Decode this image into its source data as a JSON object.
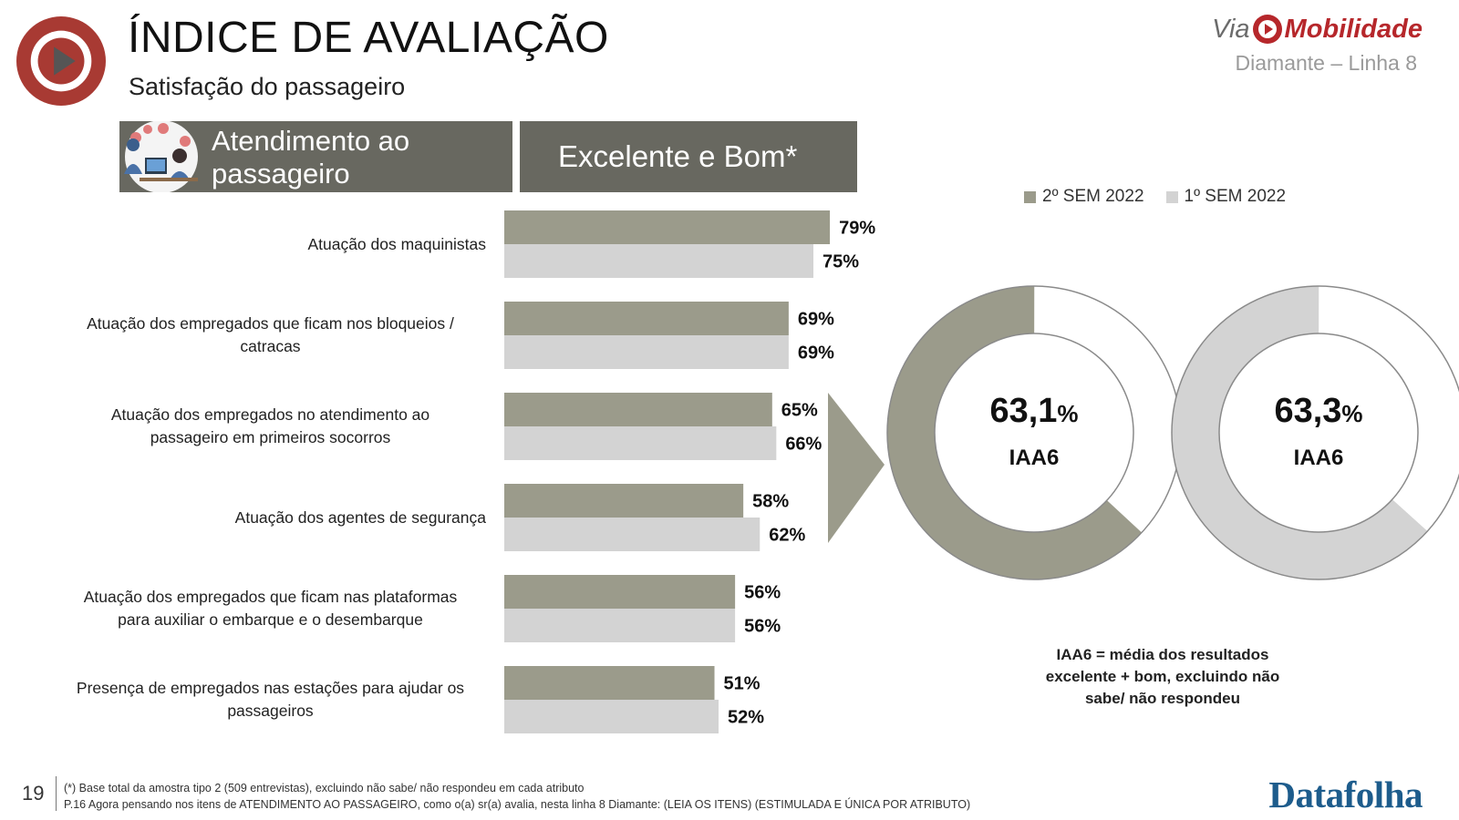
{
  "header": {
    "title": "ÍNDICE DE AVALIAÇÃO",
    "subtitle": "Satisfação do passageiro",
    "brand_prefix": "Via",
    "brand_name": "Mobilidade",
    "line_name": "Diamante – Linha 8"
  },
  "section": {
    "label": "Atendimento ao passageiro",
    "metric": "Excelente e Bom*"
  },
  "colors": {
    "series_current": "#9b9b8b",
    "series_previous": "#d3d3d3",
    "banner": "#686860",
    "brand_red": "#b6272b",
    "datafolha_blue": "#1d5c8c"
  },
  "chart_data": [
    {
      "type": "bar",
      "orientation": "horizontal",
      "categories": [
        "Atuação dos maquinistas",
        "Atuação dos empregados que ficam nos bloqueios / catracas",
        "Atuação dos  empregados no atendimento ao passageiro em primeiros socorros",
        "Atuação dos agentes de segurança",
        "Atuação dos empregados que ficam nas plataformas para auxiliar o embarque e o desembarque",
        "Presença de empregados nas estações para ajudar os passageiros"
      ],
      "category_lines": [
        [
          "Atuação dos maquinistas"
        ],
        [
          "Atuação dos empregados que ficam nos bloqueios /",
          "catracas"
        ],
        [
          "Atuação dos  empregados no atendimento ao",
          "passageiro em primeiros socorros"
        ],
        [
          "Atuação dos agentes de segurança"
        ],
        [
          "Atuação dos empregados que ficam nas plataformas",
          "para auxiliar o embarque e o desembarque"
        ],
        [
          "Presença de empregados nas estações para ajudar os",
          "passageiros"
        ]
      ],
      "series": [
        {
          "name": "2º SEM 2022",
          "values": [
            79,
            69,
            65,
            58,
            56,
            51
          ],
          "labels": [
            "79%",
            "69%",
            "65%",
            "58%",
            "56%",
            "51%"
          ]
        },
        {
          "name": "1º SEM 2022",
          "values": [
            75,
            69,
            66,
            62,
            56,
            52
          ],
          "labels": [
            "75%",
            "69%",
            "66%",
            "62%",
            "56%",
            "52%"
          ]
        }
      ],
      "unit": "%",
      "xlim": [
        0,
        100
      ],
      "grid": false,
      "legend": "top-right"
    },
    {
      "type": "pie",
      "style": "donut",
      "series_name": "2º SEM 2022",
      "value": 63.1,
      "value_text": "63,1",
      "unit": "%",
      "label": "IAA6"
    },
    {
      "type": "pie",
      "style": "donut",
      "series_name": "1º SEM 2022",
      "value": 63.3,
      "value_text": "63,3",
      "unit": "%",
      "label": "IAA6"
    }
  ],
  "note": {
    "lines": [
      "IAA6 = média dos resultados",
      "excelente + bom, excluindo não",
      "sabe/ não respondeu"
    ]
  },
  "footer": {
    "page_number": "19",
    "footnote_1": "(*) Base total da amostra tipo 2 (509 entrevistas), excluindo não sabe/ não respondeu em cada atributo",
    "footnote_2": "P.16 Agora pensando nos itens de ATENDIMENTO AO PASSAGEIRO, como o(a) sr(a) avalia, nesta linha 8 Diamante: (LEIA OS ITENS) (ESTIMULADA E ÚNICA POR ATRIBUTO)",
    "source_logo": "Datafolha"
  }
}
